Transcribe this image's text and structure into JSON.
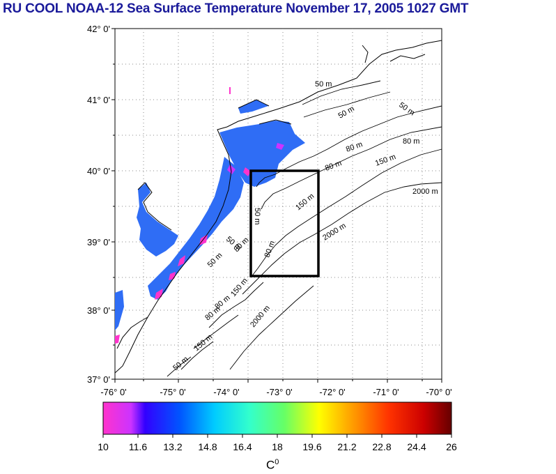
{
  "title": "RU COOL  NOAA-12 Sea Surface Temperature November 17, 2005 1027 GMT",
  "lat_labels": [
    "42° 0'",
    "41° 0'",
    "40° 0'",
    "39° 0'",
    "38° 0'",
    "37° 0'"
  ],
  "lon_labels": [
    "-76° 0'",
    "-75° 0'",
    "-74° 0'",
    "-73° 0'",
    "-72° 0'",
    "-71° 0'",
    "-70° 0'"
  ],
  "contour_labels": [
    "50 m",
    "50 m",
    "50 m",
    "80 m",
    "80 m",
    "150 m",
    "80 m",
    "2000 m",
    "150 m",
    "50 m",
    "2000 m",
    "50 m",
    "80 m",
    "80 m",
    "50 m",
    "150 m",
    "80 m",
    "2000 m",
    "150 m",
    "50 m",
    "80 m"
  ],
  "colorbar": {
    "labels": [
      "10",
      "11.6",
      "13.2",
      "14.8",
      "16.4",
      "18",
      "19.6",
      "21.2",
      "22.8",
      "24.4",
      "26"
    ],
    "colors": [
      "#ff33cc",
      "#3300ff",
      "#0066ff",
      "#00ccff",
      "#33ffcc",
      "#66ff66",
      "#ffff00",
      "#ff9900",
      "#ff3300",
      "#cc0000",
      "#660000"
    ],
    "unit": "C",
    "unit_sup": "0"
  }
}
